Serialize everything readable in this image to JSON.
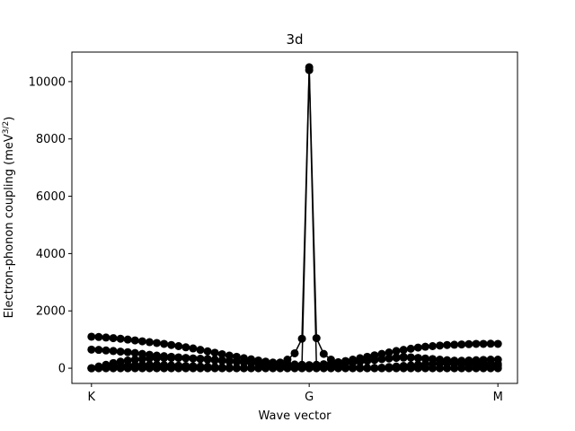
{
  "chart_data": {
    "type": "line",
    "title": "3d",
    "x_label": "Wave vector",
    "y_label": [
      "Electron-phonon coupling (meV",
      "3/2",
      ")"
    ],
    "x": [
      0,
      1,
      2,
      3,
      4,
      5,
      6,
      7,
      8,
      9,
      10,
      11,
      12,
      13,
      14,
      15,
      16,
      17,
      18,
      19,
      20,
      21,
      22,
      23,
      24,
      25,
      26,
      27,
      28,
      29,
      30,
      31,
      32,
      33,
      34,
      35,
      36,
      37,
      38,
      39,
      40,
      41,
      42,
      43,
      44,
      45,
      46,
      47,
      48,
      49,
      50,
      51,
      52,
      53,
      54,
      55,
      56
    ],
    "xlim": [
      -2.7,
      58.7
    ],
    "xticks": [
      {
        "value": 0,
        "label": "K"
      },
      {
        "value": 30,
        "label": "G"
      },
      {
        "value": 56,
        "label": "M"
      }
    ],
    "ylim": [
      -530,
      11030
    ],
    "yticks": [
      0,
      2000,
      4000,
      6000,
      8000,
      10000
    ],
    "series": [
      {
        "color": "#000000",
        "values": [
          1100,
          1090,
          1070,
          1050,
          1030,
          1000,
          970,
          940,
          910,
          880,
          850,
          810,
          770,
          730,
          690,
          640,
          590,
          540,
          490,
          440,
          400,
          350,
          310,
          270,
          230,
          200,
          170,
          150,
          130,
          120,
          110,
          120,
          140,
          170,
          210,
          250,
          300,
          350,
          400,
          450,
          500,
          550,
          600,
          640,
          680,
          720,
          750,
          770,
          790,
          810,
          820,
          830,
          840,
          850,
          850,
          855,
          850
        ]
      },
      {
        "color": "#000000",
        "values": [
          650,
          640,
          620,
          600,
          580,
          560,
          530,
          500,
          470,
          440,
          420,
          400,
          380,
          360,
          340,
          320,
          300,
          280,
          260,
          240,
          220,
          200,
          180,
          160,
          140,
          120,
          100,
          90,
          80,
          70,
          60,
          70,
          90,
          110,
          140,
          170,
          200,
          230,
          260,
          290,
          320,
          350,
          380,
          400,
          380,
          350,
          320,
          300,
          280,
          270,
          260,
          260,
          270,
          280,
          290,
          300,
          300
        ]
      },
      {
        "color": "#000000",
        "values": [
          0,
          60,
          120,
          180,
          230,
          270,
          300,
          320,
          340,
          350,
          360,
          360,
          360,
          350,
          340,
          330,
          320,
          300,
          280,
          260,
          240,
          220,
          200,
          180,
          160,
          150,
          200,
          300,
          520,
          1030,
          10500,
          1050,
          500,
          300,
          200,
          180,
          200,
          230,
          260,
          290,
          320,
          340,
          360,
          370,
          370,
          360,
          340,
          320,
          300,
          280,
          260,
          240,
          220,
          200,
          180,
          160,
          150
        ]
      },
      {
        "color": "#000000",
        "values": [
          0,
          20,
          40,
          60,
          80,
          100,
          110,
          120,
          120,
          120,
          110,
          100,
          90,
          80,
          70,
          60,
          50,
          40,
          30,
          20,
          10,
          10,
          10,
          20,
          30,
          40,
          50,
          60,
          80,
          100,
          10400,
          100,
          80,
          60,
          50,
          40,
          30,
          20,
          10,
          10,
          20,
          40,
          60,
          80,
          100,
          120,
          140,
          150,
          160,
          160,
          150,
          140,
          130,
          120,
          110,
          100,
          90
        ]
      },
      {
        "color": "#000000",
        "values": [
          0,
          0,
          0,
          0,
          0,
          0,
          0,
          0,
          0,
          0,
          0,
          0,
          0,
          0,
          0,
          0,
          0,
          0,
          0,
          0,
          0,
          0,
          0,
          0,
          0,
          0,
          0,
          0,
          0,
          0,
          0,
          0,
          0,
          0,
          0,
          0,
          0,
          0,
          0,
          0,
          0,
          0,
          0,
          0,
          0,
          0,
          0,
          0,
          0,
          0,
          0,
          0,
          0,
          0,
          0,
          0,
          0
        ]
      }
    ]
  }
}
